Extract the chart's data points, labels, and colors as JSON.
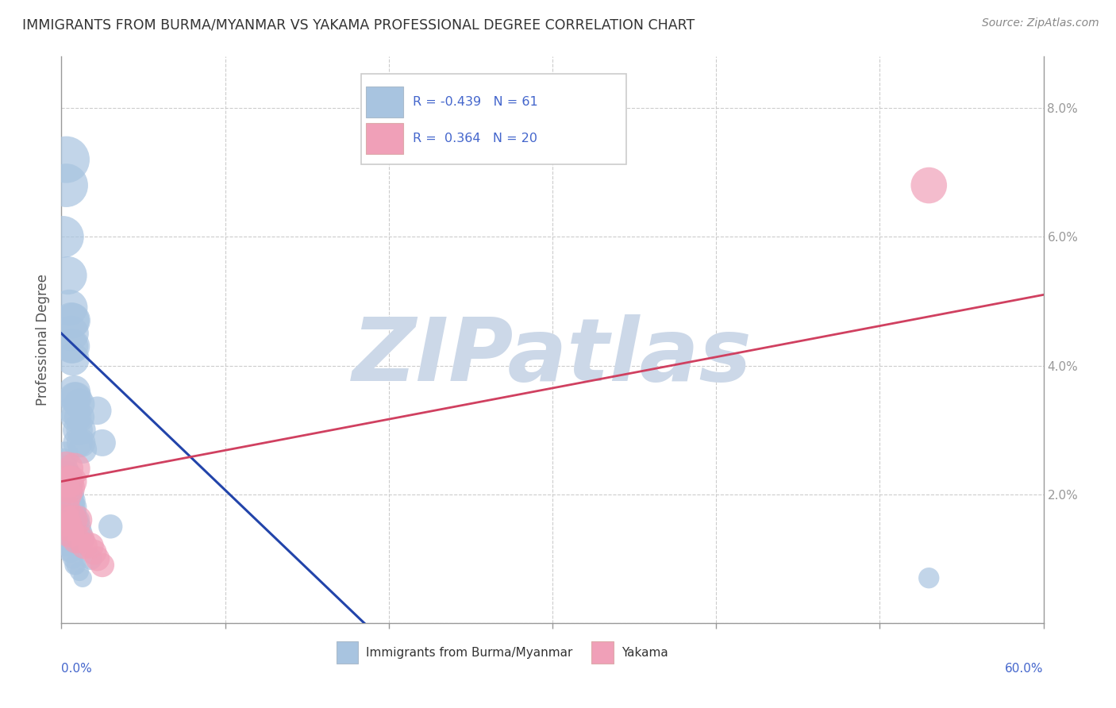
{
  "title": "IMMIGRANTS FROM BURMA/MYANMAR VS YAKAMA PROFESSIONAL DEGREE CORRELATION CHART",
  "source": "Source: ZipAtlas.com",
  "ylabel": "Professional Degree",
  "xlim": [
    0,
    0.6
  ],
  "ylim": [
    0,
    0.088
  ],
  "xticks": [
    0.0,
    0.1,
    0.2,
    0.3,
    0.4,
    0.5,
    0.6
  ],
  "yticks_right": [
    0.0,
    0.02,
    0.04,
    0.06,
    0.08
  ],
  "legend_labels": [
    "Immigrants from Burma/Myanmar",
    "Yakama"
  ],
  "legend_R": [
    -0.439,
    0.364
  ],
  "legend_N": [
    61,
    20
  ],
  "blue_color": "#a8c4e0",
  "blue_line_color": "#2244aa",
  "pink_color": "#f0a0b8",
  "pink_line_color": "#d04060",
  "watermark": "ZIPatlas",
  "watermark_color": "#ccd8e8",
  "blue_scatter_x": [
    0.001,
    0.003,
    0.003,
    0.004,
    0.005,
    0.006,
    0.006,
    0.006,
    0.007,
    0.007,
    0.007,
    0.008,
    0.008,
    0.008,
    0.009,
    0.009,
    0.01,
    0.01,
    0.011,
    0.011,
    0.012,
    0.012,
    0.013,
    0.001,
    0.002,
    0.002,
    0.003,
    0.003,
    0.004,
    0.004,
    0.005,
    0.005,
    0.005,
    0.006,
    0.006,
    0.007,
    0.007,
    0.008,
    0.008,
    0.009,
    0.009,
    0.01,
    0.011,
    0.012,
    0.013,
    0.001,
    0.002,
    0.003,
    0.004,
    0.005,
    0.006,
    0.007,
    0.008,
    0.009,
    0.011,
    0.013,
    0.022,
    0.025,
    0.03,
    0.018,
    0.53
  ],
  "blue_scatter_y": [
    0.06,
    0.072,
    0.068,
    0.054,
    0.049,
    0.047,
    0.045,
    0.043,
    0.047,
    0.043,
    0.041,
    0.036,
    0.035,
    0.033,
    0.035,
    0.032,
    0.03,
    0.028,
    0.034,
    0.032,
    0.03,
    0.028,
    0.027,
    0.025,
    0.026,
    0.024,
    0.023,
    0.022,
    0.023,
    0.021,
    0.022,
    0.021,
    0.02,
    0.02,
    0.019,
    0.019,
    0.018,
    0.018,
    0.017,
    0.016,
    0.015,
    0.016,
    0.015,
    0.014,
    0.013,
    0.013,
    0.013,
    0.012,
    0.012,
    0.011,
    0.011,
    0.01,
    0.009,
    0.009,
    0.008,
    0.007,
    0.033,
    0.028,
    0.015,
    0.01,
    0.007
  ],
  "blue_scatter_size": [
    120,
    150,
    130,
    100,
    90,
    90,
    85,
    80,
    85,
    80,
    75,
    70,
    68,
    65,
    68,
    65,
    62,
    60,
    65,
    63,
    60,
    58,
    56,
    52,
    54,
    50,
    50,
    48,
    50,
    48,
    48,
    46,
    46,
    46,
    44,
    44,
    42,
    42,
    40,
    40,
    38,
    40,
    38,
    36,
    35,
    34,
    33,
    32,
    31,
    30,
    29,
    28,
    27,
    26,
    25,
    24,
    55,
    50,
    40,
    35,
    30
  ],
  "pink_scatter_x": [
    0.001,
    0.002,
    0.003,
    0.003,
    0.004,
    0.004,
    0.005,
    0.005,
    0.006,
    0.007,
    0.008,
    0.009,
    0.01,
    0.012,
    0.014,
    0.018,
    0.02,
    0.022,
    0.025,
    0.53
  ],
  "pink_scatter_y": [
    0.018,
    0.016,
    0.024,
    0.02,
    0.022,
    0.015,
    0.021,
    0.014,
    0.022,
    0.016,
    0.024,
    0.013,
    0.016,
    0.013,
    0.012,
    0.012,
    0.011,
    0.01,
    0.009,
    0.068
  ],
  "pink_scatter_size": [
    80,
    70,
    80,
    68,
    72,
    60,
    65,
    58,
    68,
    60,
    68,
    55,
    58,
    52,
    48,
    46,
    44,
    42,
    40,
    90
  ],
  "blue_line_x": [
    0.0,
    0.185
  ],
  "blue_line_y": [
    0.045,
    0.0
  ],
  "pink_line_x": [
    0.0,
    0.6
  ],
  "pink_line_y": [
    0.022,
    0.051
  ],
  "background_color": "#ffffff",
  "grid_color": "#cccccc",
  "title_color": "#333333",
  "tick_label_color": "#4466cc"
}
